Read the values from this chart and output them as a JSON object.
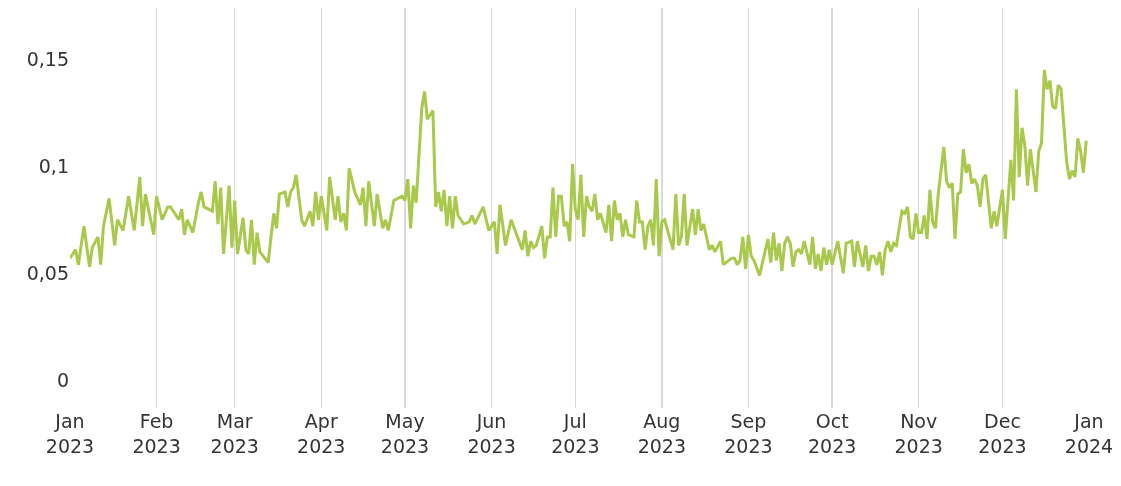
{
  "chart_data": {
    "type": "line",
    "x": [
      "2023-01-01",
      "2023-01-03",
      "2023-01-04",
      "2023-01-06",
      "2023-01-08",
      "2023-01-09",
      "2023-01-11",
      "2023-01-12",
      "2023-01-13",
      "2023-01-15",
      "2023-01-17",
      "2023-01-18",
      "2023-01-20",
      "2023-01-22",
      "2023-01-24",
      "2023-01-26",
      "2023-01-27",
      "2023-01-28",
      "2023-01-31",
      "2023-02-01",
      "2023-02-03",
      "2023-02-05",
      "2023-02-06",
      "2023-02-09",
      "2023-02-10",
      "2023-02-11",
      "2023-02-12",
      "2023-02-14",
      "2023-02-16",
      "2023-02-17",
      "2023-02-18",
      "2023-02-21",
      "2023-02-22",
      "2023-02-23",
      "2023-02-24",
      "2023-02-25",
      "2023-02-27",
      "2023-02-28",
      "2023-03-01",
      "2023-03-02",
      "2023-03-04",
      "2023-03-05",
      "2023-03-06",
      "2023-03-07",
      "2023-03-08",
      "2023-03-09",
      "2023-03-10",
      "2023-03-13",
      "2023-03-14",
      "2023-03-15",
      "2023-03-16",
      "2023-03-17",
      "2023-03-19",
      "2023-03-20",
      "2023-03-21",
      "2023-03-22",
      "2023-03-23",
      "2023-03-25",
      "2023-03-26",
      "2023-03-28",
      "2023-03-29",
      "2023-03-30",
      "2023-03-31",
      "2023-04-01",
      "2023-04-03",
      "2023-04-04",
      "2023-04-06",
      "2023-04-07",
      "2023-04-08",
      "2023-04-09",
      "2023-04-10",
      "2023-04-11",
      "2023-04-13",
      "2023-04-15",
      "2023-04-16",
      "2023-04-17",
      "2023-04-18",
      "2023-04-20",
      "2023-04-21",
      "2023-04-23",
      "2023-04-24",
      "2023-04-25",
      "2023-04-27",
      "2023-04-30",
      "2023-05-01",
      "2023-05-02",
      "2023-05-03",
      "2023-05-04",
      "2023-05-05",
      "2023-05-07",
      "2023-05-08",
      "2023-05-09",
      "2023-05-11",
      "2023-05-12",
      "2023-05-13",
      "2023-05-14",
      "2023-05-15",
      "2023-05-16",
      "2023-05-17",
      "2023-05-18",
      "2023-05-19",
      "2023-05-20",
      "2023-05-22",
      "2023-05-24",
      "2023-05-25",
      "2023-05-26",
      "2023-05-29",
      "2023-05-31",
      "2023-06-02",
      "2023-06-03",
      "2023-06-04",
      "2023-06-06",
      "2023-06-08",
      "2023-06-12",
      "2023-06-13",
      "2023-06-14",
      "2023-06-15",
      "2023-06-16",
      "2023-06-17",
      "2023-06-19",
      "2023-06-20",
      "2023-06-21",
      "2023-06-22",
      "2023-06-23",
      "2023-06-24",
      "2023-06-25",
      "2023-06-26",
      "2023-06-27",
      "2023-06-28",
      "2023-06-29",
      "2023-06-30",
      "2023-07-01",
      "2023-07-02",
      "2023-07-03",
      "2023-07-04",
      "2023-07-05",
      "2023-07-06",
      "2023-07-07",
      "2023-07-08",
      "2023-07-09",
      "2023-07-10",
      "2023-07-12",
      "2023-07-13",
      "2023-07-14",
      "2023-07-15",
      "2023-07-16",
      "2023-07-17",
      "2023-07-18",
      "2023-07-19",
      "2023-07-20",
      "2023-07-22",
      "2023-07-23",
      "2023-07-24",
      "2023-07-25",
      "2023-07-26",
      "2023-07-27",
      "2023-07-28",
      "2023-07-29",
      "2023-07-30",
      "2023-07-31",
      "2023-08-01",
      "2023-08-02",
      "2023-08-05",
      "2023-08-06",
      "2023-08-07",
      "2023-08-08",
      "2023-08-09",
      "2023-08-10",
      "2023-08-12",
      "2023-08-13",
      "2023-08-14",
      "2023-08-15",
      "2023-08-16",
      "2023-08-18",
      "2023-08-19",
      "2023-08-20",
      "2023-08-22",
      "2023-08-23",
      "2023-08-26",
      "2023-08-27",
      "2023-08-28",
      "2023-08-29",
      "2023-08-30",
      "2023-08-31",
      "2023-09-01",
      "2023-09-02",
      "2023-09-03",
      "2023-09-05",
      "2023-09-08",
      "2023-09-09",
      "2023-09-10",
      "2023-09-11",
      "2023-09-12",
      "2023-09-13",
      "2023-09-14",
      "2023-09-15",
      "2023-09-16",
      "2023-09-17",
      "2023-09-18",
      "2023-09-19",
      "2023-09-20",
      "2023-09-21",
      "2023-09-23",
      "2023-09-24",
      "2023-09-25",
      "2023-09-26",
      "2023-09-27",
      "2023-09-28",
      "2023-09-29",
      "2023-09-30",
      "2023-10-01",
      "2023-10-03",
      "2023-10-05",
      "2023-10-06",
      "2023-10-08",
      "2023-10-09",
      "2023-10-10",
      "2023-10-12",
      "2023-10-13",
      "2023-10-14",
      "2023-10-15",
      "2023-10-16",
      "2023-10-17",
      "2023-10-18",
      "2023-10-19",
      "2023-10-20",
      "2023-10-21",
      "2023-10-22",
      "2023-10-23",
      "2023-10-24",
      "2023-10-26",
      "2023-10-27",
      "2023-10-28",
      "2023-10-29",
      "2023-10-30",
      "2023-10-31",
      "2023-11-01",
      "2023-11-02",
      "2023-11-03",
      "2023-11-04",
      "2023-11-05",
      "2023-11-06",
      "2023-11-07",
      "2023-11-08",
      "2023-11-10",
      "2023-11-11",
      "2023-11-12",
      "2023-11-13",
      "2023-11-14",
      "2023-11-15",
      "2023-11-16",
      "2023-11-17",
      "2023-11-18",
      "2023-11-19",
      "2023-11-20",
      "2023-11-21",
      "2023-11-22",
      "2023-11-23",
      "2023-11-24",
      "2023-11-25",
      "2023-11-27",
      "2023-11-28",
      "2023-11-29",
      "2023-12-01",
      "2023-12-02",
      "2023-12-04",
      "2023-12-05",
      "2023-12-06",
      "2023-12-07",
      "2023-12-08",
      "2023-12-09",
      "2023-12-10",
      "2023-12-11",
      "2023-12-13",
      "2023-12-14",
      "2023-12-15",
      "2023-12-16",
      "2023-12-17",
      "2023-12-18",
      "2023-12-19",
      "2023-12-20",
      "2023-12-21",
      "2023-12-22",
      "2023-12-23",
      "2023-12-24",
      "2023-12-25",
      "2023-12-26",
      "2023-12-27",
      "2023-12-28",
      "2023-12-29",
      "2023-12-30",
      "2023-12-31"
    ],
    "series": [
      {
        "color": "#a8c94b",
        "values": [
          0.057,
          0.061,
          0.054,
          0.072,
          0.053,
          0.062,
          0.067,
          0.054,
          0.072,
          0.085,
          0.063,
          0.075,
          0.07,
          0.086,
          0.07,
          0.095,
          0.072,
          0.087,
          0.068,
          0.086,
          0.075,
          0.081,
          0.081,
          0.075,
          0.08,
          0.068,
          0.075,
          0.069,
          0.083,
          0.088,
          0.081,
          0.079,
          0.093,
          0.073,
          0.09,
          0.059,
          0.091,
          0.062,
          0.084,
          0.059,
          0.076,
          0.061,
          0.059,
          0.075,
          0.054,
          0.069,
          0.06,
          0.055,
          0.067,
          0.078,
          0.071,
          0.087,
          0.088,
          0.081,
          0.088,
          0.09,
          0.096,
          0.075,
          0.072,
          0.079,
          0.072,
          0.088,
          0.075,
          0.086,
          0.07,
          0.095,
          0.075,
          0.086,
          0.074,
          0.078,
          0.07,
          0.099,
          0.088,
          0.082,
          0.09,
          0.072,
          0.093,
          0.072,
          0.087,
          0.071,
          0.075,
          0.07,
          0.084,
          0.086,
          0.084,
          0.094,
          0.071,
          0.091,
          0.083,
          0.127,
          0.135,
          0.122,
          0.126,
          0.081,
          0.088,
          0.079,
          0.089,
          0.072,
          0.086,
          0.071,
          0.086,
          0.077,
          0.073,
          0.074,
          0.077,
          0.073,
          0.081,
          0.07,
          0.074,
          0.059,
          0.082,
          0.063,
          0.075,
          0.061,
          0.07,
          0.058,
          0.065,
          0.062,
          0.063,
          0.072,
          0.057,
          0.067,
          0.067,
          0.09,
          0.067,
          0.086,
          0.086,
          0.072,
          0.074,
          0.065,
          0.101,
          0.08,
          0.075,
          0.096,
          0.067,
          0.086,
          0.081,
          0.079,
          0.087,
          0.075,
          0.078,
          0.069,
          0.082,
          0.065,
          0.084,
          0.075,
          0.078,
          0.067,
          0.075,
          0.068,
          0.067,
          0.084,
          0.074,
          0.074,
          0.061,
          0.072,
          0.075,
          0.063,
          0.094,
          0.058,
          0.074,
          0.075,
          0.061,
          0.087,
          0.063,
          0.067,
          0.087,
          0.063,
          0.08,
          0.068,
          0.08,
          0.07,
          0.073,
          0.061,
          0.063,
          0.06,
          0.065,
          0.054,
          0.057,
          0.057,
          0.054,
          0.056,
          0.067,
          0.052,
          0.068,
          0.058,
          0.056,
          0.049,
          0.066,
          0.055,
          0.069,
          0.056,
          0.064,
          0.051,
          0.064,
          0.067,
          0.064,
          0.053,
          0.06,
          0.061,
          0.059,
          0.065,
          0.054,
          0.067,
          0.052,
          0.059,
          0.051,
          0.062,
          0.054,
          0.061,
          0.054,
          0.065,
          0.05,
          0.064,
          0.065,
          0.053,
          0.065,
          0.053,
          0.063,
          0.051,
          0.058,
          0.058,
          0.054,
          0.06,
          0.049,
          0.061,
          0.065,
          0.06,
          0.064,
          0.063,
          0.079,
          0.078,
          0.081,
          0.067,
          0.066,
          0.078,
          0.069,
          0.069,
          0.077,
          0.066,
          0.089,
          0.074,
          0.071,
          0.087,
          0.109,
          0.093,
          0.09,
          0.092,
          0.066,
          0.087,
          0.088,
          0.108,
          0.097,
          0.101,
          0.092,
          0.094,
          0.091,
          0.081,
          0.094,
          0.096,
          0.071,
          0.079,
          0.072,
          0.089,
          0.066,
          0.103,
          0.084,
          0.136,
          0.095,
          0.118,
          0.11,
          0.091,
          0.108,
          0.088,
          0.107,
          0.111,
          0.145,
          0.136,
          0.14,
          0.128,
          0.127,
          0.138,
          0.136,
          0.119,
          0.102,
          0.094,
          0.098,
          0.095,
          0.113,
          0.107,
          0.097,
          0.112
        ]
      }
    ],
    "xlim": [
      "2023-01-01",
      "2024-01-01"
    ],
    "xticks": [
      {
        "value": "2023-01-01",
        "label": "Jan\n2023"
      },
      {
        "value": "2023-02-01",
        "label": "Feb\n2023"
      },
      {
        "value": "2023-03-01",
        "label": "Mar\n2023"
      },
      {
        "value": "2023-04-01",
        "label": "Apr\n2023"
      },
      {
        "value": "2023-05-01",
        "label": "May\n2023"
      },
      {
        "value": "2023-06-01",
        "label": "Jun\n2023"
      },
      {
        "value": "2023-07-01",
        "label": "Jul\n2023"
      },
      {
        "value": "2023-08-01",
        "label": "Aug\n2023"
      },
      {
        "value": "2023-09-01",
        "label": "Sep\n2023"
      },
      {
        "value": "2023-10-01",
        "label": "Oct\n2023"
      },
      {
        "value": "2023-11-01",
        "label": "Nov\n2023"
      },
      {
        "value": "2023-12-01",
        "label": "Dec\n2023"
      },
      {
        "value": "2024-01-01",
        "label": "Jan\n2024"
      }
    ],
    "ylim": [
      -0.013,
      0.174
    ],
    "yticks": [
      0,
      {
        "value": 0.05,
        "label": "0,05"
      },
      {
        "value": 0.1,
        "label": "0,1"
      },
      {
        "value": 0.15,
        "label": "0,15"
      }
    ],
    "grid": "x",
    "marker": "none",
    "line_style": "solid"
  }
}
